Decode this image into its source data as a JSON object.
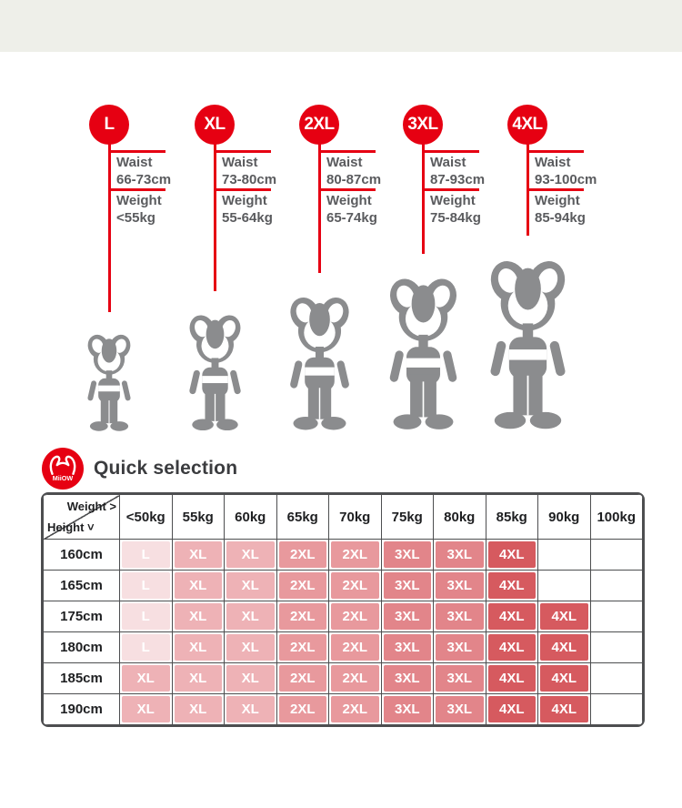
{
  "colors": {
    "accent_red": "#e60012",
    "cat_gray": "#8b8c8e",
    "top_band": "#eeefe9",
    "table_border": "#4d4e50",
    "size_fill": {
      "L": "#f7dfe1",
      "XL": "#eeb2b6",
      "2XL": "#e8999d",
      "3XL": "#e2858a",
      "4XL": "#d65a5f"
    }
  },
  "size_guide": {
    "spec_labels": {
      "waist": "Waist",
      "weight": "Weight"
    },
    "sizes": [
      {
        "label": "L",
        "waist": "66-73cm",
        "weight": "<55kg"
      },
      {
        "label": "XL",
        "waist": "73-80cm",
        "weight": "55-64kg"
      },
      {
        "label": "2XL",
        "waist": "80-87cm",
        "weight": "65-74kg"
      },
      {
        "label": "3XL",
        "waist": "87-93cm",
        "weight": "75-84kg"
      },
      {
        "label": "4XL",
        "waist": "93-100cm",
        "weight": "85-94kg"
      }
    ]
  },
  "quick_selection": {
    "logo_text": "MiiOW",
    "title": "Quick selection",
    "corner_top": "Weight >",
    "corner_bottom": "Height ˅"
  },
  "chart_data": {
    "type": "table",
    "columns": [
      "<50kg",
      "55kg",
      "60kg",
      "65kg",
      "70kg",
      "75kg",
      "80kg",
      "85kg",
      "90kg",
      "100kg"
    ],
    "rows": [
      {
        "height": "160cm",
        "cells": [
          "L",
          "XL",
          "XL",
          "2XL",
          "2XL",
          "3XL",
          "3XL",
          "4XL",
          "",
          ""
        ]
      },
      {
        "height": "165cm",
        "cells": [
          "L",
          "XL",
          "XL",
          "2XL",
          "2XL",
          "3XL",
          "3XL",
          "4XL",
          "",
          ""
        ]
      },
      {
        "height": "175cm",
        "cells": [
          "L",
          "XL",
          "XL",
          "2XL",
          "2XL",
          "3XL",
          "3XL",
          "4XL",
          "4XL",
          ""
        ]
      },
      {
        "height": "180cm",
        "cells": [
          "L",
          "XL",
          "XL",
          "2XL",
          "2XL",
          "3XL",
          "3XL",
          "4XL",
          "4XL",
          ""
        ]
      },
      {
        "height": "185cm",
        "cells": [
          "XL",
          "XL",
          "XL",
          "2XL",
          "2XL",
          "3XL",
          "3XL",
          "4XL",
          "4XL",
          ""
        ]
      },
      {
        "height": "190cm",
        "cells": [
          "XL",
          "XL",
          "XL",
          "2XL",
          "2XL",
          "3XL",
          "3XL",
          "4XL",
          "4XL",
          ""
        ]
      }
    ]
  }
}
